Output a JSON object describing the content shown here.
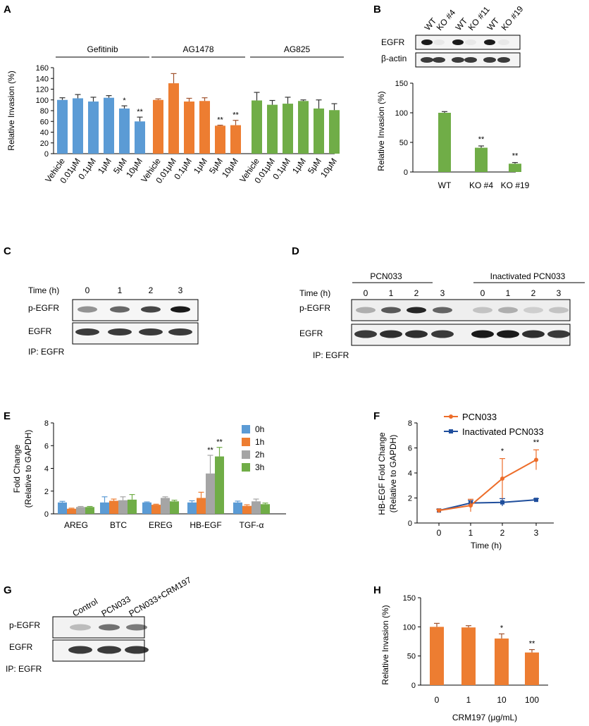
{
  "panels": {
    "A": {
      "letter": "A"
    },
    "B": {
      "letter": "B"
    },
    "C": {
      "letter": "C"
    },
    "D": {
      "letter": "D"
    },
    "E": {
      "letter": "E"
    },
    "F": {
      "letter": "F"
    },
    "G": {
      "letter": "G"
    },
    "H": {
      "letter": "H"
    }
  },
  "blots": {
    "B": {
      "lanes": [
        "WT",
        "KO #4",
        "WT",
        "KO #11",
        "WT",
        "KO #19"
      ],
      "rows": [
        "EGFR",
        "β-actin"
      ],
      "egfr_intensity": [
        1,
        0,
        1,
        0,
        1,
        0
      ],
      "actin_intensity": [
        1,
        1,
        1,
        1,
        1,
        1
      ]
    },
    "C": {
      "time_label": "Time (h)",
      "lanes": [
        "0",
        "1",
        "2",
        "3"
      ],
      "rows": [
        "p-EGFR",
        "EGFR"
      ],
      "pegfr_intensity": [
        0.45,
        0.65,
        0.8,
        1.0
      ],
      "egfr_intensity": [
        1,
        1,
        1,
        1
      ],
      "ip": "IP: EGFR"
    },
    "D": {
      "group1": "PCN033",
      "group2": "Inactivated PCN033",
      "time_label": "Time (h)",
      "lanes": [
        "0",
        "1",
        "2",
        "3",
        "0",
        "1",
        "2",
        "3"
      ],
      "rows": [
        "p-EGFR",
        "EGFR"
      ],
      "pegfr_intensity": [
        0.3,
        0.7,
        0.95,
        0.65,
        0.2,
        0.3,
        0.15,
        0.2
      ],
      "egfr_intensity": [
        0.85,
        0.9,
        0.9,
        0.85,
        1,
        1,
        0.9,
        0.85
      ],
      "ip": "IP: EGFR"
    },
    "G": {
      "lanes": [
        "Control",
        "PCN033",
        "PCN033+CRM197"
      ],
      "rows": [
        "p-EGFR",
        "EGFR"
      ],
      "pegfr_intensity": [
        0.25,
        0.6,
        0.55
      ],
      "egfr_intensity": [
        1,
        1,
        1
      ],
      "ip": "IP: EGFR"
    }
  },
  "chart_data": [
    {
      "id": "A",
      "type": "bar",
      "ylabel": "Relative Invasion (%)",
      "ylim": [
        0,
        160
      ],
      "yticks": [
        "0",
        "20",
        "40",
        "60",
        "80",
        "100",
        "120",
        "140",
        "160"
      ],
      "groups": [
        {
          "name": "Gefitinib",
          "color": "#5b9bd5",
          "categories": [
            "Vehicle",
            "0.01μM",
            "0.1μM",
            "1μM",
            "5μM",
            "10μM"
          ],
          "values": [
            100,
            103,
            97,
            104,
            84,
            60
          ],
          "errors": [
            4,
            7,
            8,
            4,
            5,
            8
          ],
          "sig": [
            "",
            "",
            "",
            "",
            "*",
            "**"
          ]
        },
        {
          "name": "AG1478",
          "color": "#ed7d31",
          "categories": [
            "Vehicle",
            "0.01μM",
            "0.1μM",
            "1μM",
            "5μM",
            "10μM"
          ],
          "values": [
            100,
            131,
            97,
            98,
            52,
            53
          ],
          "errors": [
            2,
            18,
            6,
            6,
            1,
            9
          ],
          "sig": [
            "",
            "",
            "",
            "",
            "**",
            "**"
          ]
        },
        {
          "name": "AG825",
          "color": "#70ad47",
          "categories": [
            "Vehicle",
            "0.01μM",
            "0.1μM",
            "1μM",
            "5μM",
            "10μM"
          ],
          "values": [
            99,
            91,
            93,
            98,
            84,
            81
          ],
          "errors": [
            15,
            8,
            12,
            2,
            16,
            12
          ],
          "sig": [
            "",
            "",
            "",
            "",
            "",
            ""
          ]
        }
      ]
    },
    {
      "id": "B",
      "type": "bar",
      "ylabel": "Relative Invasion (%)",
      "ylim": [
        0,
        150
      ],
      "yticks": [
        "0",
        "50",
        "100",
        "150"
      ],
      "categories": [
        "WT",
        "KO #4",
        "KO #19"
      ],
      "values": [
        100,
        41,
        14
      ],
      "errors": [
        2,
        3,
        2
      ],
      "sig": [
        "",
        "**",
        "**"
      ],
      "color": "#70ad47"
    },
    {
      "id": "E",
      "type": "bar",
      "ylabel": "Fold Change",
      "ylabel2": "(Relative to GAPDH)",
      "ylim": [
        0,
        8
      ],
      "yticks": [
        "0",
        "2",
        "4",
        "6",
        "8"
      ],
      "categories": [
        "AREG",
        "BTC",
        "EREG",
        "HB-EGF",
        "TGF-α"
      ],
      "series": [
        {
          "name": "0h",
          "color": "#5b9bd5",
          "values": [
            1.0,
            1.0,
            1.0,
            1.0,
            1.0
          ],
          "errors": [
            0.1,
            0.5,
            0.05,
            0.15,
            0.12
          ]
        },
        {
          "name": "1h",
          "color": "#ed7d31",
          "values": [
            0.45,
            1.15,
            0.8,
            1.4,
            0.7
          ],
          "errors": [
            0.05,
            0.15,
            0.05,
            0.5,
            0.1
          ]
        },
        {
          "name": "2h",
          "color": "#a5a5a5",
          "values": [
            0.6,
            1.2,
            1.4,
            3.55,
            1.1
          ],
          "errors": [
            0.05,
            0.3,
            0.1,
            1.6,
            0.2
          ]
        },
        {
          "name": "3h",
          "color": "#70ad47",
          "values": [
            0.6,
            1.25,
            1.1,
            5.05,
            0.85
          ],
          "errors": [
            0.05,
            0.45,
            0.1,
            0.8,
            0.1
          ]
        }
      ],
      "sig": {
        "3": {
          "2": "**",
          "3": "**"
        }
      }
    },
    {
      "id": "F",
      "type": "line",
      "ylabel": "HB-EGF Fold Change",
      "ylabel2": "(Relative to GAPDH)",
      "xlabel": "Time (h)",
      "ylim": [
        0,
        8
      ],
      "xlim": [
        -0.5,
        3.5
      ],
      "yticks": [
        "0",
        "2",
        "4",
        "6",
        "8"
      ],
      "x": [
        0,
        1,
        2,
        3
      ],
      "xticks": [
        "0",
        "1",
        "2",
        "3"
      ],
      "series": [
        {
          "name": "PCN033",
          "color": "#ed6d2a",
          "values": [
            1.0,
            1.4,
            3.55,
            5.05
          ],
          "errors": [
            0.1,
            0.5,
            1.6,
            0.8
          ]
        },
        {
          "name": "Inactivated PCN033",
          "color": "#1f4e9c",
          "values": [
            1.0,
            1.6,
            1.65,
            1.85
          ],
          "errors": [
            0.1,
            0.2,
            0.3,
            0.1
          ]
        }
      ],
      "sig": [
        "",
        "",
        "*",
        "**"
      ]
    },
    {
      "id": "H",
      "type": "bar",
      "ylabel": "Relative Invasion (%)",
      "xlabel": "CRM197 (μg/mL)",
      "ylim": [
        0,
        150
      ],
      "yticks": [
        "0",
        "50",
        "100",
        "150"
      ],
      "categories": [
        "0",
        "1",
        "10",
        "100"
      ],
      "values": [
        100,
        99,
        80,
        56
      ],
      "errors": [
        6,
        3,
        8,
        5
      ],
      "sig": [
        "",
        "",
        "*",
        "**"
      ],
      "color": "#ed7d31"
    }
  ]
}
